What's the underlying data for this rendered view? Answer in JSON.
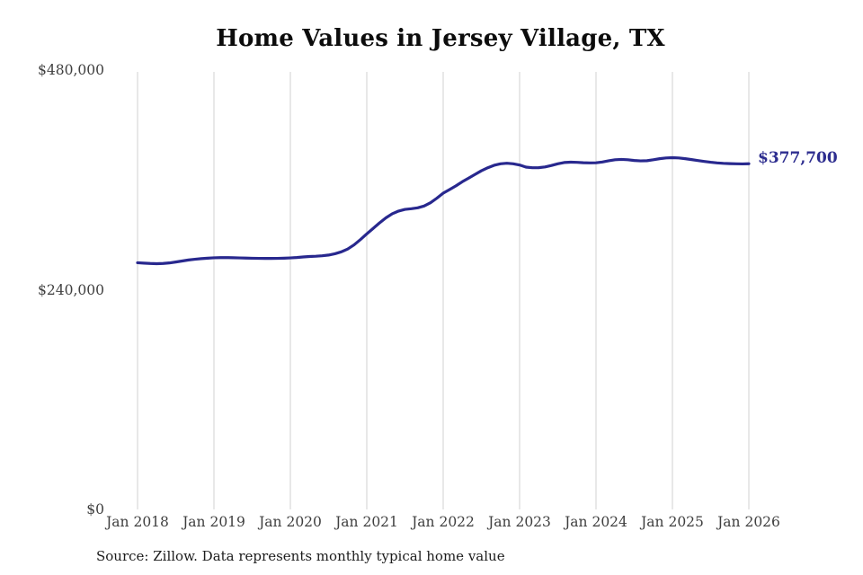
{
  "chart_data": {
    "type": "line",
    "title": "Home Values in Jersey Village, TX",
    "x_tick_labels": [
      "Jan 2018",
      "Jan 2019",
      "Jan 2020",
      "Jan 2021",
      "Jan 2022",
      "Jan 2023",
      "Jan 2024",
      "Jan 2025",
      "Jan 2026"
    ],
    "y_ticks": [
      {
        "label": "$0",
        "value": 0
      },
      {
        "label": "$240,000",
        "value": 240000
      },
      {
        "label": "$480,000",
        "value": 480000
      }
    ],
    "ylim": [
      0,
      480000
    ],
    "x_start": "2018-01",
    "x_step_months": 1,
    "grid": "vertical-only",
    "legend": "none",
    "series": [
      {
        "name": "Monthly typical home value",
        "values": [
          269500,
          269100,
          268700,
          268500,
          268700,
          269300,
          270300,
          271400,
          272500,
          273300,
          274000,
          274500,
          274900,
          275100,
          275100,
          275000,
          274800,
          274600,
          274400,
          274300,
          274200,
          274200,
          274300,
          274500,
          274800,
          275200,
          275800,
          276300,
          276600,
          277100,
          277900,
          279300,
          281400,
          284500,
          289000,
          294800,
          301000,
          307000,
          313000,
          318500,
          323000,
          326000,
          327800,
          328500,
          329500,
          331500,
          335000,
          340000,
          345500,
          349500,
          353500,
          358000,
          362000,
          366000,
          370000,
          373300,
          376000,
          377600,
          378200,
          377600,
          376300,
          374000,
          373300,
          373400,
          374200,
          375800,
          377600,
          379000,
          379400,
          379200,
          378800,
          378600,
          378700,
          379600,
          380900,
          382000,
          382400,
          382000,
          381200,
          380800,
          381000,
          382000,
          383200,
          384000,
          384300,
          384000,
          383200,
          382200,
          381200,
          380200,
          379300,
          378600,
          378100,
          377800,
          377600,
          377500,
          377700
        ]
      }
    ],
    "end_label": "$377,700",
    "end_value": 377700
  },
  "source_note": "Source: Zillow. Data represents monthly typical home value",
  "colors": {
    "line": "#28288e",
    "end_label": "#2d2d8f",
    "grid": "#d2d2d2",
    "tick_text": "#3f3f3f",
    "title_text": "#0c0c0c",
    "background": "#ffffff"
  }
}
